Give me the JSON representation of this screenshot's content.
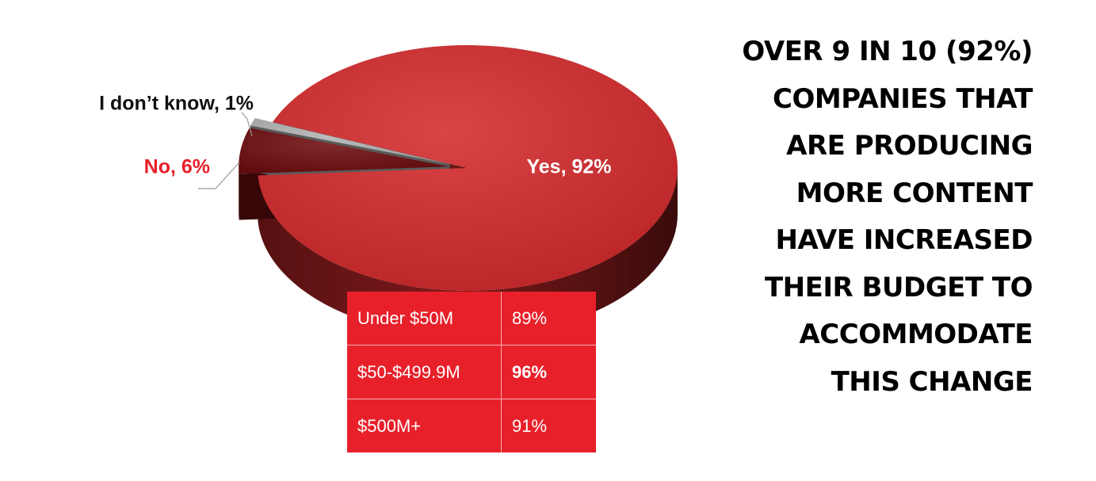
{
  "chart_data": {
    "type": "pie",
    "values": [
      92,
      6,
      1
    ],
    "value_labels": [
      "Yes, 92%",
      "No, 6%",
      "I don’t know, 1%"
    ],
    "colors": [
      "#d42a2c",
      "#6e0d0f",
      "#b4b4b4"
    ],
    "label_colors": [
      "#ffffff",
      "#e8202a",
      "#111111"
    ]
  },
  "table": {
    "rows": [
      {
        "label": "Under $50M",
        "value": "89%",
        "bold": false
      },
      {
        "label": "$50-$499.9M",
        "value": "96%",
        "bold": true
      },
      {
        "label": "$500M+",
        "value": "91%",
        "bold": false
      }
    ]
  },
  "headline": [
    "OVER 9 IN 10 (92%)",
    "COMPANIES THAT",
    "ARE PRODUCING",
    "MORE CONTENT",
    "HAVE INCREASED",
    "THEIR BUDGET TO",
    "ACCOMMODATE",
    "THIS CHANGE"
  ]
}
